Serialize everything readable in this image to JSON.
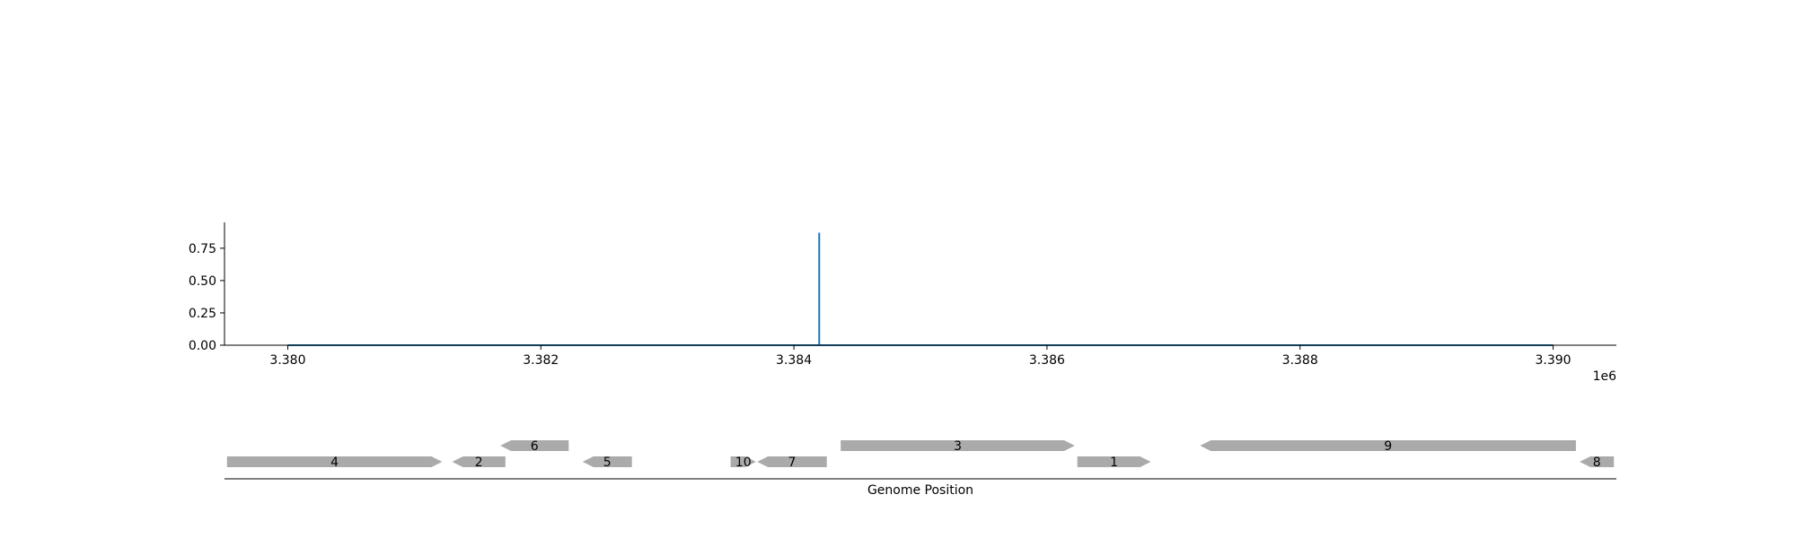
{
  "chart_data": {
    "type": "line",
    "x_scale_label": "1e6",
    "xlim": [
      3.3795,
      3.3905
    ],
    "ylim": [
      0,
      0.95
    ],
    "x_ticks": [
      3.38,
      3.382,
      3.384,
      3.386,
      3.388,
      3.39
    ],
    "x_tick_labels": [
      "3.380",
      "3.382",
      "3.384",
      "3.386",
      "3.388",
      "3.390"
    ],
    "y_ticks": [
      0.0,
      0.25,
      0.5,
      0.75
    ],
    "y_tick_labels": [
      "0.00",
      "0.25",
      "0.50",
      "0.75"
    ],
    "grid": false,
    "series": [
      {
        "color": "#1f77b4",
        "x": [
          3.38,
          3.3842,
          3.3842,
          3.3842,
          3.39
        ],
        "y": [
          0.0,
          0.0,
          0.87,
          0.0,
          0.0
        ]
      }
    ],
    "genes": {
      "xlabel": "Genome Position",
      "color": "#aaaaaa",
      "items": [
        {
          "label": "4",
          "start": 3.37952,
          "end": 3.38122,
          "strand": "+",
          "row": 0
        },
        {
          "label": "2",
          "start": 3.3813,
          "end": 3.38172,
          "strand": "-",
          "row": 0
        },
        {
          "label": "6",
          "start": 3.38168,
          "end": 3.38222,
          "strand": "-",
          "row": 1
        },
        {
          "label": "5",
          "start": 3.38233,
          "end": 3.38272,
          "strand": "-",
          "row": 0
        },
        {
          "label": "10",
          "start": 3.3835,
          "end": 3.3837,
          "strand": "+",
          "row": 0
        },
        {
          "label": "7",
          "start": 3.38371,
          "end": 3.38426,
          "strand": "-",
          "row": 0
        },
        {
          "label": "3",
          "start": 3.38437,
          "end": 3.38622,
          "strand": "+",
          "row": 1
        },
        {
          "label": "1",
          "start": 3.38624,
          "end": 3.38682,
          "strand": "+",
          "row": 0
        },
        {
          "label": "9",
          "start": 3.38721,
          "end": 3.39018,
          "strand": "-",
          "row": 1
        },
        {
          "label": "8",
          "start": 3.39021,
          "end": 3.39048,
          "strand": "-",
          "row": 0
        }
      ]
    }
  }
}
